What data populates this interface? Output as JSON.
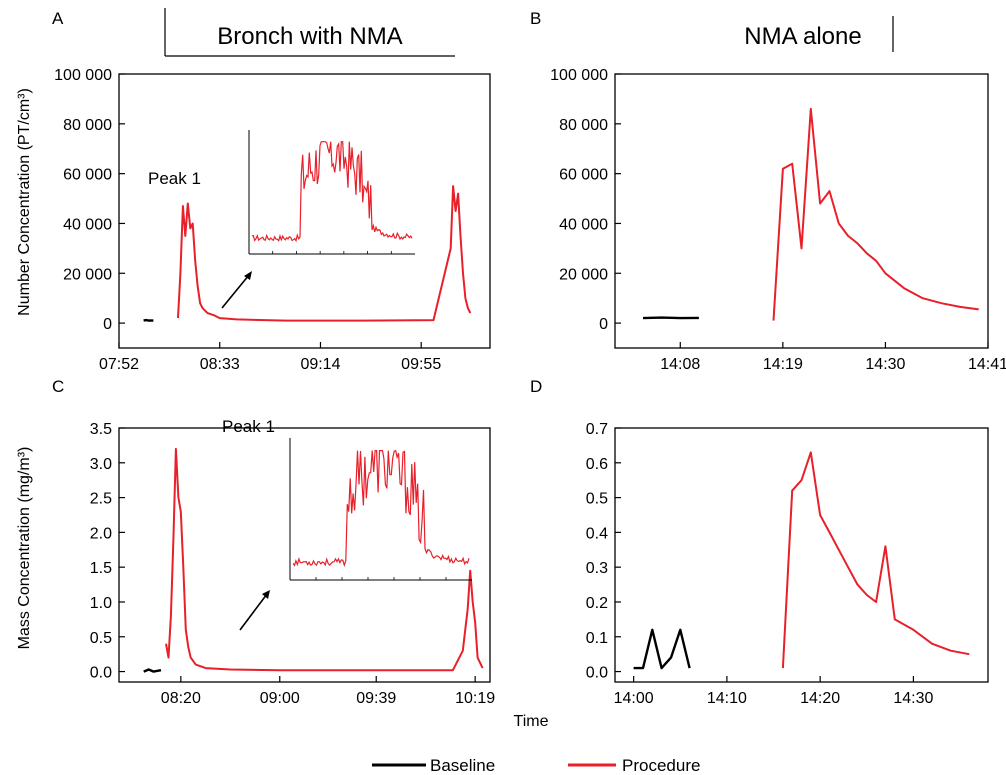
{
  "figure": {
    "shared_xlabel": "Time",
    "legend": [
      {
        "label": "Baseline",
        "color": "#000000"
      },
      {
        "label": "Procedure",
        "color": "#e8202a"
      }
    ]
  },
  "colors": {
    "baseline": "#000000",
    "procedure": "#e8202a",
    "axis": "#000000"
  },
  "chart_data": [
    {
      "panel": "A",
      "type": "line",
      "title": "Bronch with NMA",
      "ylabel": "Number Concentration (PT/cm³)",
      "xlabel": "",
      "x_unit": "clock time (hh:mm)",
      "xlim": [
        "07:52",
        "10:23"
      ],
      "ylim": [
        -10000,
        100000
      ],
      "x_ticks": [
        "07:52",
        "08:33",
        "09:14",
        "09:55"
      ],
      "y_ticks": [
        "0",
        "20 000",
        "40 000",
        "60 000",
        "80 000",
        "100 000"
      ],
      "y_tick_values": [
        0,
        20000,
        40000,
        60000,
        80000,
        100000
      ],
      "annotation": "Peak 1",
      "inset": "zoom of Peak 1 (no axis labels)",
      "series": [
        {
          "name": "Baseline",
          "color": "#000000",
          "x": [
            "08:02",
            "08:03",
            "08:04",
            "08:05",
            "08:06"
          ],
          "y": [
            1000,
            1200,
            1000,
            1100,
            1000
          ]
        },
        {
          "name": "Procedure",
          "color": "#e8202a",
          "x": [
            "08:16",
            "08:17",
            "08:18",
            "08:19",
            "08:20",
            "08:21",
            "08:22",
            "08:23",
            "08:24",
            "08:25",
            "08:26",
            "08:28",
            "08:31",
            "08:33",
            "08:40",
            "09:00",
            "09:30",
            "10:00",
            "10:07",
            "10:08",
            "10:09",
            "10:10",
            "10:11",
            "10:12",
            "10:13",
            "10:14",
            "10:15"
          ],
          "y": [
            2000,
            20000,
            47000,
            35000,
            48000,
            38000,
            40000,
            25000,
            15000,
            8000,
            6000,
            4000,
            3000,
            2000,
            1500,
            1000,
            1000,
            1200,
            30000,
            55000,
            45000,
            52000,
            35000,
            20000,
            10000,
            6000,
            4000
          ]
        }
      ]
    },
    {
      "panel": "B",
      "type": "line",
      "title": "NMA alone",
      "ylabel": "",
      "xlabel": "",
      "x_unit": "clock time (hh:mm)",
      "xlim": [
        "14:01",
        "14:41"
      ],
      "ylim": [
        -10000,
        100000
      ],
      "x_ticks": [
        "14:08",
        "14:19",
        "14:30",
        "14:41"
      ],
      "y_ticks": [
        "0",
        "20 000",
        "40 000",
        "60 000",
        "80 000",
        "100 000"
      ],
      "y_tick_values": [
        0,
        20000,
        40000,
        60000,
        80000,
        100000
      ],
      "series": [
        {
          "name": "Baseline",
          "color": "#000000",
          "x": [
            "14:04",
            "14:06",
            "14:08",
            "14:10"
          ],
          "y": [
            2000,
            2200,
            2000,
            2100
          ]
        },
        {
          "name": "Procedure",
          "color": "#e8202a",
          "x": [
            "14:18",
            "14:19",
            "14:20",
            "14:21",
            "14:22",
            "14:23",
            "14:24",
            "14:25",
            "14:26",
            "14:27",
            "14:28",
            "14:29",
            "14:30",
            "14:32",
            "14:34",
            "14:36",
            "14:38",
            "14:40"
          ],
          "y": [
            1000,
            62000,
            64000,
            30000,
            86000,
            48000,
            53000,
            40000,
            35000,
            32000,
            28000,
            25000,
            20000,
            14000,
            10000,
            8000,
            6500,
            5500
          ]
        }
      ]
    },
    {
      "panel": "C",
      "type": "line",
      "title": "",
      "ylabel": "Mass Concentration (mg/m³)",
      "xlabel": "",
      "x_unit": "clock time (hh:mm)",
      "xlim": [
        "07:55",
        "10:25"
      ],
      "ylim": [
        -0.15,
        3.5
      ],
      "x_ticks": [
        "08:20",
        "09:00",
        "09:39",
        "10:19"
      ],
      "y_ticks": [
        "0.0",
        "0.5",
        "1.0",
        "1.5",
        "2.0",
        "2.5",
        "3.0",
        "3.5"
      ],
      "y_tick_values": [
        0,
        0.5,
        1,
        1.5,
        2,
        2.5,
        3,
        3.5
      ],
      "annotation": "Peak 1",
      "inset": "zoom of Peak 1 (no axis labels)",
      "series": [
        {
          "name": "Baseline",
          "color": "#000000",
          "x": [
            "08:05",
            "08:07",
            "08:09",
            "08:12"
          ],
          "y": [
            0.0,
            0.03,
            0.0,
            0.02
          ]
        },
        {
          "name": "Procedure",
          "color": "#e8202a",
          "x": [
            "08:14",
            "08:15",
            "08:16",
            "08:17",
            "08:18",
            "08:19",
            "08:20",
            "08:21",
            "08:22",
            "08:23",
            "08:24",
            "08:26",
            "08:30",
            "08:40",
            "09:00",
            "09:30",
            "10:00",
            "10:10",
            "10:14",
            "10:16",
            "10:17",
            "10:18",
            "10:19",
            "10:20",
            "10:22"
          ],
          "y": [
            0.4,
            0.2,
            0.8,
            1.9,
            3.2,
            2.5,
            2.3,
            1.5,
            0.6,
            0.35,
            0.2,
            0.1,
            0.05,
            0.03,
            0.02,
            0.02,
            0.02,
            0.02,
            0.3,
            0.9,
            1.45,
            1.0,
            0.7,
            0.2,
            0.05
          ]
        }
      ]
    },
    {
      "panel": "D",
      "type": "line",
      "title": "",
      "ylabel": "",
      "xlabel": "",
      "x_unit": "clock time (hh:mm)",
      "xlim": [
        "13:58",
        "14:38"
      ],
      "ylim": [
        -0.03,
        0.7
      ],
      "x_ticks": [
        "14:00",
        "14:10",
        "14:20",
        "14:30"
      ],
      "y_ticks": [
        "0.0",
        "0.1",
        "0.2",
        "0.3",
        "0.4",
        "0.5",
        "0.6",
        "0.7"
      ],
      "y_tick_values": [
        0,
        0.1,
        0.2,
        0.3,
        0.4,
        0.5,
        0.6,
        0.7
      ],
      "series": [
        {
          "name": "Baseline",
          "color": "#000000",
          "x": [
            "14:00",
            "14:01",
            "14:02",
            "14:03",
            "14:04",
            "14:05",
            "14:06"
          ],
          "y": [
            0.01,
            0.01,
            0.12,
            0.01,
            0.04,
            0.12,
            0.01
          ]
        },
        {
          "name": "Procedure",
          "color": "#e8202a",
          "x": [
            "14:16",
            "14:17",
            "14:18",
            "14:19",
            "14:20",
            "14:21",
            "14:22",
            "14:23",
            "14:24",
            "14:25",
            "14:26",
            "14:27",
            "14:28",
            "14:30",
            "14:32",
            "14:34",
            "14:36"
          ],
          "y": [
            0.01,
            0.52,
            0.55,
            0.63,
            0.45,
            0.4,
            0.35,
            0.3,
            0.25,
            0.22,
            0.2,
            0.36,
            0.15,
            0.12,
            0.08,
            0.06,
            0.05
          ]
        }
      ]
    }
  ]
}
